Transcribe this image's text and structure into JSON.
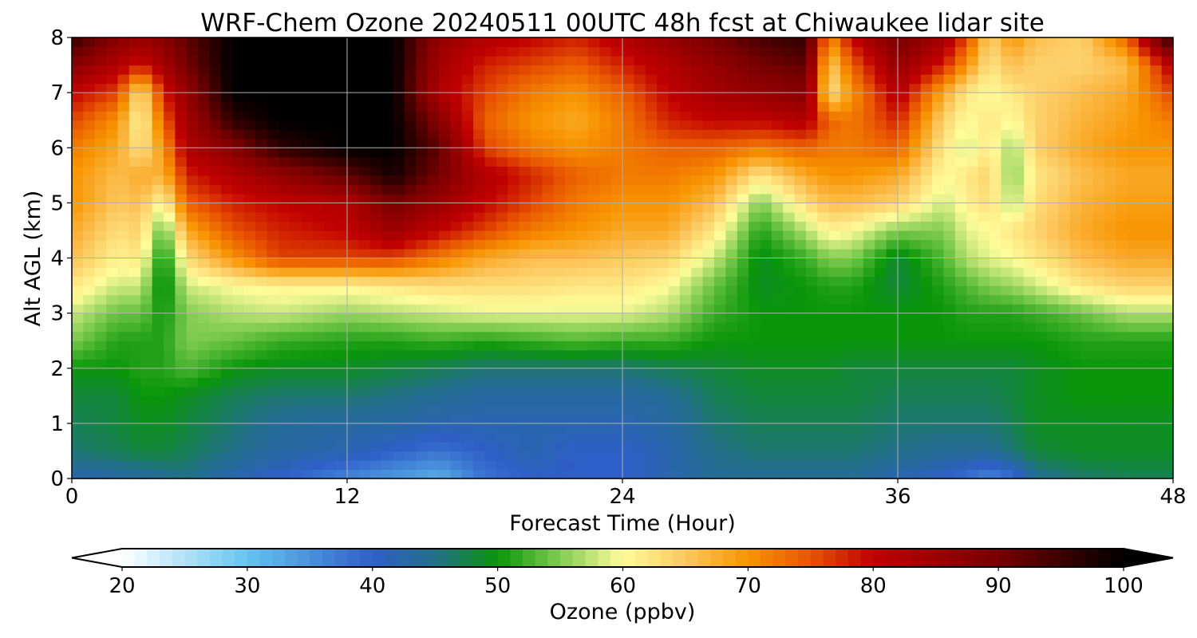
{
  "chart_data": {
    "type": "heatmap",
    "title": "WRF-Chem Ozone  20240511 00UTC 48h fcst at Chiwaukee lidar site",
    "xlabel": "Forecast Time (Hour)",
    "ylabel": "Alt AGL (km)",
    "xlim": [
      0,
      48
    ],
    "ylim": [
      0,
      8
    ],
    "xticks": [
      "0",
      "12",
      "24",
      "36",
      "48"
    ],
    "yticks": [
      "0",
      "1",
      "2",
      "3",
      "4",
      "5",
      "6",
      "7",
      "8"
    ],
    "grid": true,
    "x": [
      0,
      2,
      3,
      4,
      5,
      7,
      9,
      12,
      14,
      16,
      18,
      20,
      22,
      24,
      26,
      28,
      30,
      32,
      33,
      34,
      36,
      38,
      39,
      40,
      41,
      42,
      44,
      46,
      48
    ],
    "y": [
      0,
      0.5,
      1,
      1.5,
      2,
      2.5,
      3,
      3.5,
      4,
      4.5,
      5,
      5.5,
      6,
      6.5,
      7,
      7.5,
      8
    ],
    "z_ppbv": [
      [
        42,
        43,
        43,
        44,
        45,
        42,
        40,
        36,
        34,
        32,
        38,
        40,
        40,
        40,
        42,
        44,
        44,
        44,
        44,
        44,
        42,
        40,
        38,
        36,
        38,
        44,
        46,
        47,
        47
      ],
      [
        46,
        47,
        48,
        48,
        47,
        45,
        43,
        42,
        40,
        38,
        40,
        42,
        40,
        40,
        42,
        45,
        46,
        46,
        46,
        46,
        45,
        44,
        44,
        44,
        46,
        48,
        49,
        49,
        49
      ],
      [
        47,
        48,
        49,
        49,
        48,
        46,
        44,
        43,
        43,
        42,
        42,
        42,
        42,
        42,
        43,
        46,
        47,
        47,
        47,
        47,
        46,
        46,
        46,
        46,
        47,
        49,
        49,
        49,
        49
      ],
      [
        48,
        48,
        50,
        50,
        49,
        47,
        46,
        46,
        45,
        44,
        43,
        43,
        43,
        43,
        44,
        47,
        48,
        48,
        48,
        48,
        47,
        47,
        47,
        47,
        48,
        49,
        50,
        50,
        50
      ],
      [
        50,
        50,
        51,
        51,
        53,
        50,
        49,
        49,
        48,
        47,
        46,
        46,
        46,
        46,
        47,
        48,
        49,
        49,
        49,
        48,
        48,
        48,
        48,
        48,
        48,
        49,
        50,
        50,
        50
      ],
      [
        55,
        51,
        51,
        51,
        55,
        54,
        52,
        51,
        51,
        52,
        51,
        52,
        53,
        52,
        52,
        50,
        50,
        50,
        50,
        50,
        50,
        50,
        50,
        50,
        50,
        50,
        51,
        51,
        51
      ],
      [
        58,
        54,
        54,
        50,
        55,
        57,
        58,
        56,
        57,
        58,
        59,
        59,
        59,
        59,
        57,
        52,
        50,
        50,
        50,
        50,
        50,
        50,
        51,
        51,
        51,
        52,
        54,
        57,
        57
      ],
      [
        62,
        58,
        58,
        48,
        58,
        60,
        61,
        61,
        62,
        63,
        63,
        63,
        62,
        62,
        60,
        54,
        49,
        50,
        51,
        51,
        48,
        51,
        53,
        55,
        56,
        58,
        62,
        64,
        64
      ],
      [
        66,
        61,
        62,
        49,
        63,
        70,
        76,
        76,
        76,
        72,
        68,
        66,
        66,
        65,
        64,
        58,
        49,
        52,
        55,
        55,
        48,
        53,
        57,
        59,
        60,
        62,
        66,
        68,
        68
      ],
      [
        68,
        63,
        64,
        53,
        68,
        75,
        78,
        80,
        85,
        80,
        76,
        72,
        70,
        68,
        68,
        62,
        51,
        57,
        61,
        60,
        55,
        55,
        59,
        60,
        62,
        64,
        68,
        70,
        70
      ],
      [
        70,
        65,
        66,
        60,
        74,
        78,
        80,
        82,
        90,
        85,
        80,
        76,
        72,
        70,
        70,
        66,
        55,
        63,
        66,
        66,
        64,
        58,
        61,
        63,
        57,
        63,
        67,
        69,
        69
      ],
      [
        70,
        66,
        68,
        67,
        78,
        82,
        86,
        92,
        98,
        90,
        82,
        78,
        74,
        72,
        72,
        70,
        62,
        68,
        70,
        70,
        68,
        60,
        62,
        64,
        55,
        62,
        66,
        68,
        68
      ],
      [
        72,
        68,
        62,
        70,
        82,
        88,
        96,
        100,
        100,
        92,
        76,
        72,
        70,
        72,
        74,
        74,
        72,
        74,
        72,
        72,
        74,
        62,
        58,
        62,
        56,
        64,
        68,
        70,
        70
      ],
      [
        76,
        70,
        60,
        74,
        84,
        96,
        100,
        100,
        100,
        88,
        74,
        70,
        68,
        72,
        78,
        80,
        80,
        82,
        74,
        72,
        78,
        64,
        60,
        62,
        60,
        64,
        67,
        69,
        72
      ],
      [
        80,
        76,
        62,
        78,
        86,
        100,
        100,
        100,
        100,
        82,
        76,
        72,
        70,
        74,
        80,
        84,
        86,
        88,
        62,
        70,
        82,
        68,
        62,
        60,
        62,
        64,
        66,
        68,
        76
      ],
      [
        88,
        82,
        78,
        84,
        90,
        100,
        100,
        100,
        100,
        84,
        78,
        76,
        74,
        78,
        82,
        86,
        90,
        92,
        64,
        74,
        86,
        78,
        70,
        62,
        66,
        64,
        64,
        66,
        82
      ],
      [
        96,
        88,
        86,
        88,
        92,
        100,
        100,
        100,
        100,
        86,
        82,
        80,
        78,
        82,
        86,
        90,
        94,
        96,
        70,
        80,
        90,
        84,
        76,
        64,
        70,
        66,
        64,
        74,
        98
      ]
    ],
    "colorbar": {
      "label": "Ozone  (ppbv)",
      "min": 20,
      "max": 100,
      "ticks": [
        "20",
        "30",
        "40",
        "50",
        "60",
        "70",
        "80",
        "90",
        "100"
      ],
      "extend": "both",
      "colors": [
        {
          "value": 20,
          "color": "#ffffff"
        },
        {
          "value": 30,
          "color": "#64c4f0"
        },
        {
          "value": 40,
          "color": "#2f5fc8"
        },
        {
          "value": 45,
          "color": "#23708a"
        },
        {
          "value": 50,
          "color": "#0a960a"
        },
        {
          "value": 55,
          "color": "#80cc50"
        },
        {
          "value": 60,
          "color": "#fffc9a"
        },
        {
          "value": 65,
          "color": "#fcc860"
        },
        {
          "value": 70,
          "color": "#f89400"
        },
        {
          "value": 75,
          "color": "#e85400"
        },
        {
          "value": 80,
          "color": "#c00000"
        },
        {
          "value": 90,
          "color": "#780000"
        },
        {
          "value": 100,
          "color": "#000000"
        }
      ]
    }
  }
}
